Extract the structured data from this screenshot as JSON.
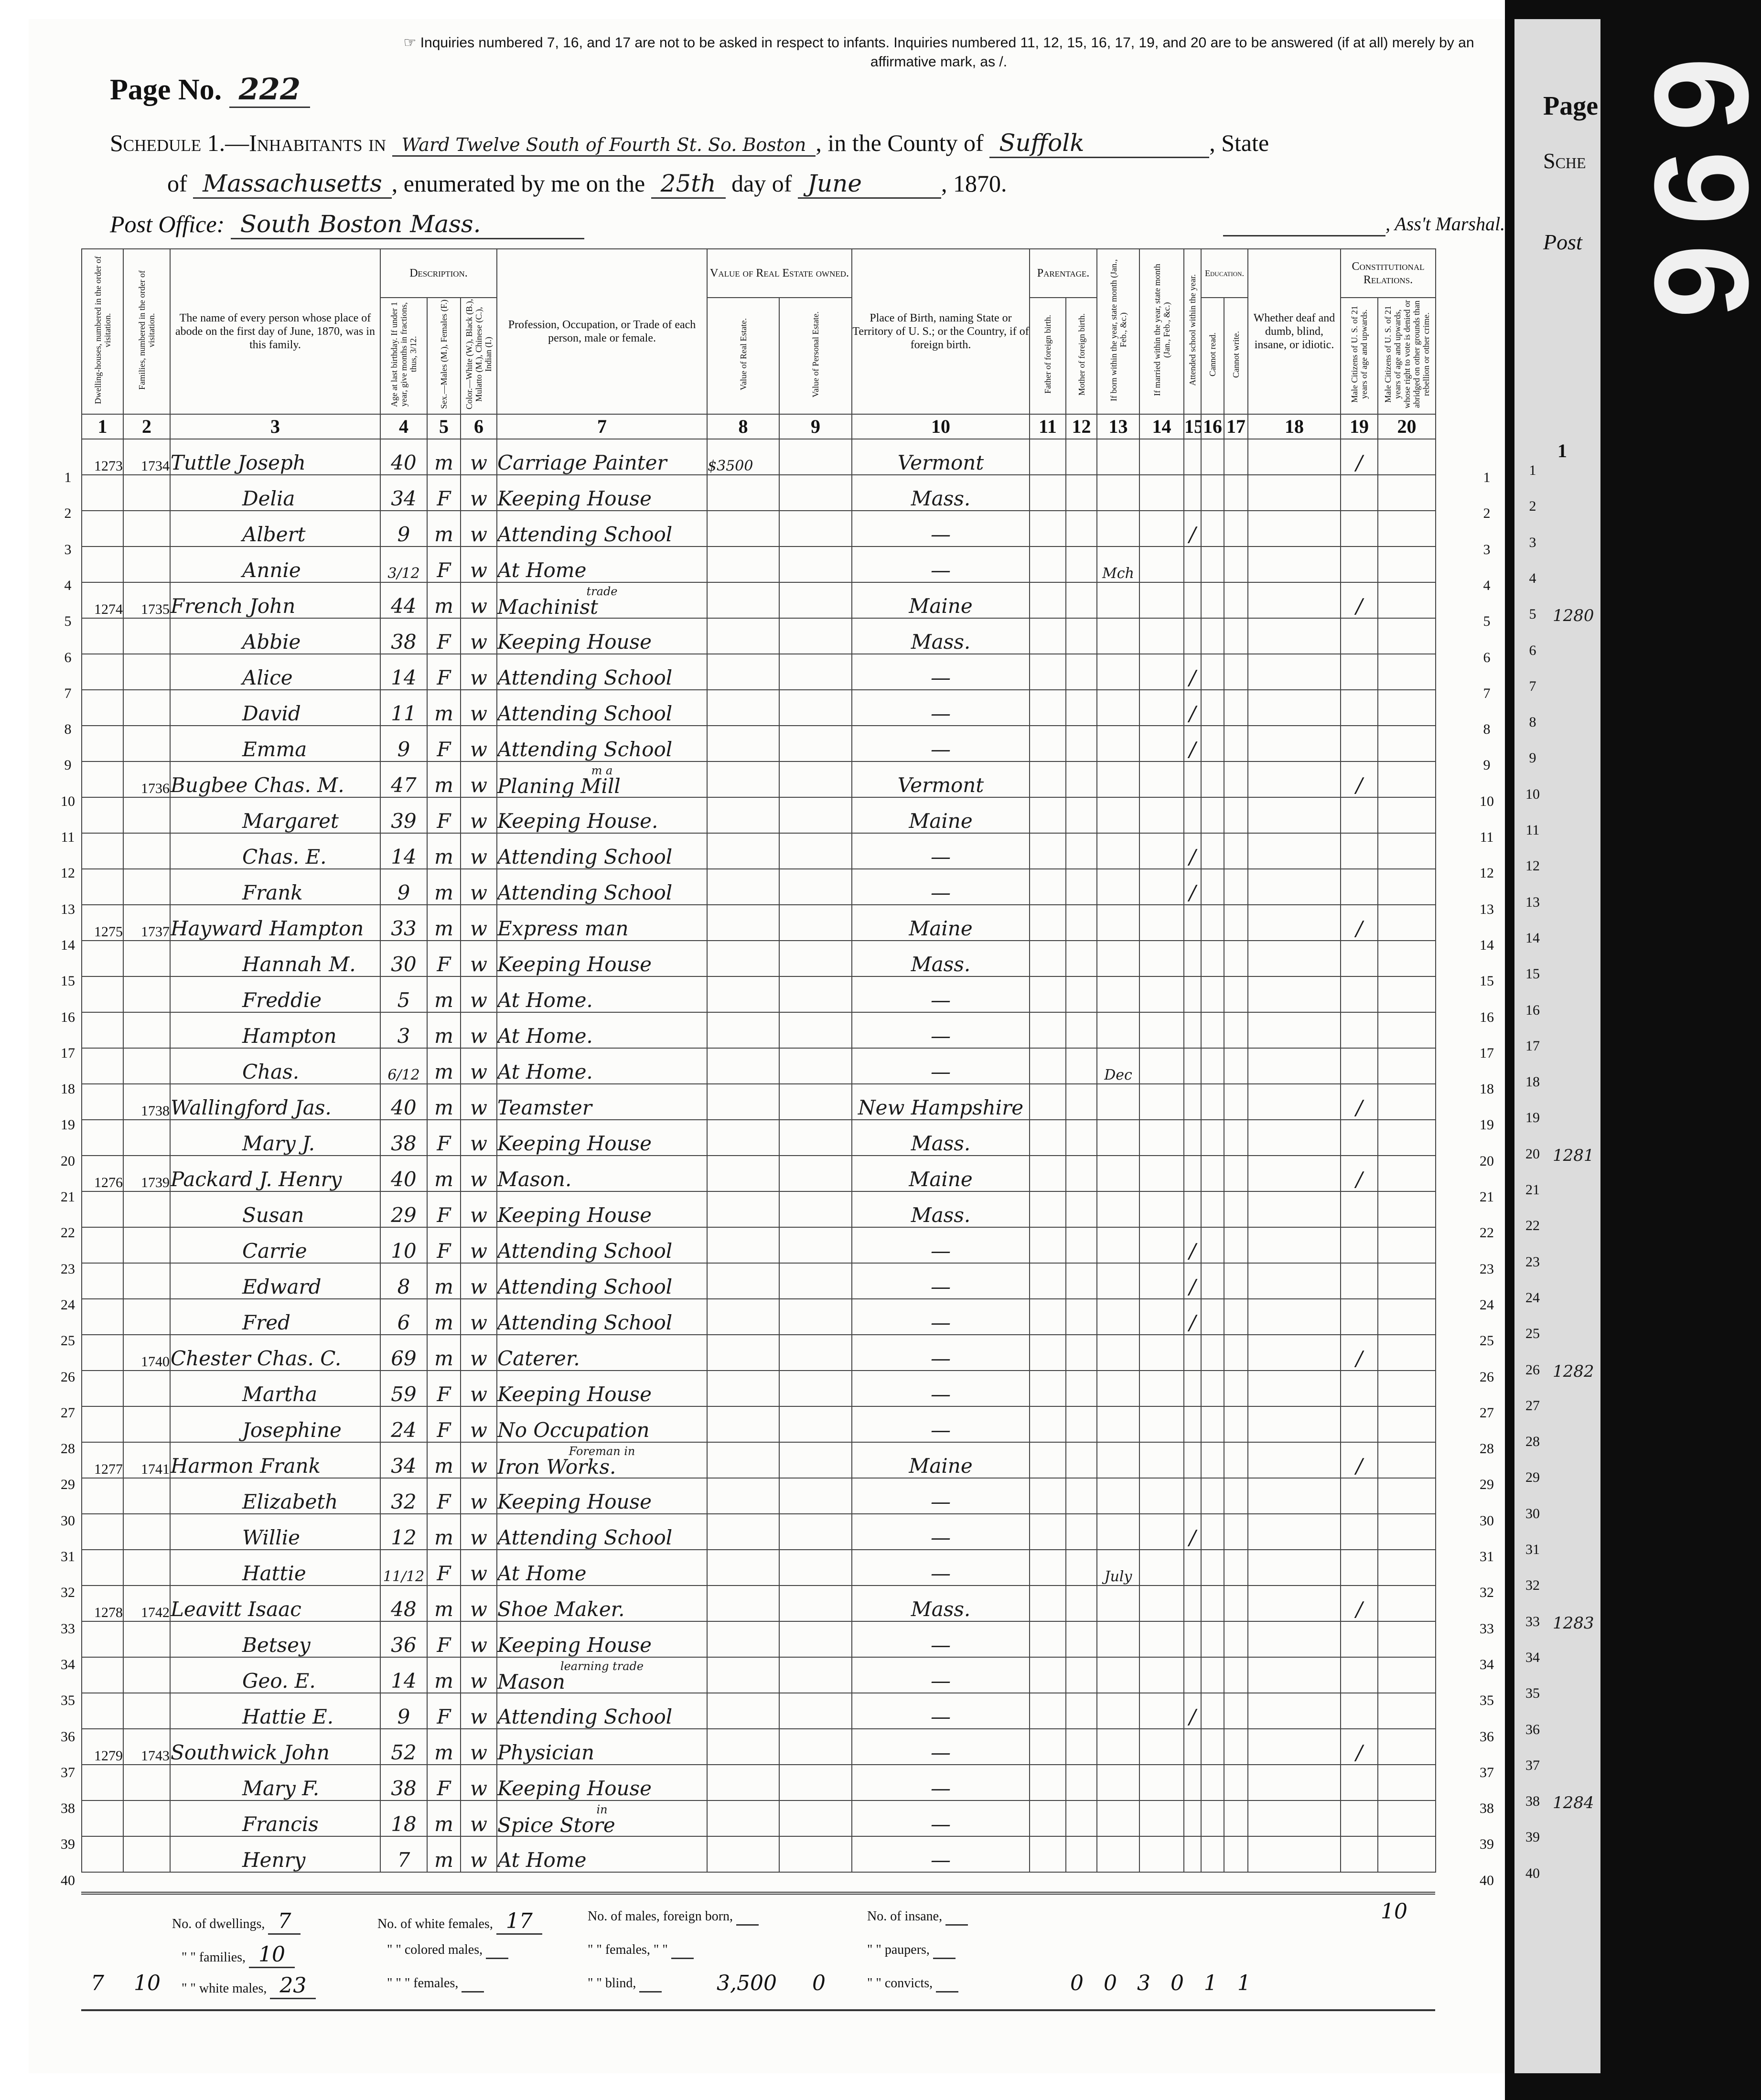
{
  "header": {
    "page_label": "Page No.",
    "page_no": "222",
    "note": "☞ Inquiries numbered 7, 16, and 17 are not to be asked in respect to infants. Inquiries numbered 11, 12, 15, 16, 17, 19, and 20 are to be answered (if at all) merely by an affirmative mark, as /.",
    "schedule_label": "Schedule 1.—Inhabitants in",
    "ward": "Ward Twelve South of Fourth St. So. Boston",
    "county_label": ", in the County of",
    "county": "Suffolk",
    "state_label": ", State",
    "of_label": "of",
    "state": "Massachusetts",
    "enumerated_label": ", enumerated by me on the",
    "day": "25th",
    "day_of_label": "day of",
    "month": "June",
    "year": ", 1870.",
    "post_office_label": "Post Office:",
    "post_office": "South Boston Mass.",
    "marshal_label": ", Ass't Marshal."
  },
  "groups": {
    "description": "Description.",
    "value": "Value of Real Estate owned.",
    "parentage": "Parentage.",
    "education": "Education.",
    "constitutional": "Constitutional Relations."
  },
  "columns": [
    "Dwelling-houses, numbered in the order of visitation.",
    "Families, numbered in the order of visitation.",
    "The name of every person whose place of abode on the first day of June, 1870, was in this family.",
    "Age at last birthday. If under 1 year, give months in fractions, thus, 3/12.",
    "Sex.—Males (M.), Females (F.)",
    "Color.—White (W.), Black (B.), Mulatto (M.), Chinese (C.), Indian (I.)",
    "Profession, Occupation, or Trade of each person, male or female.",
    "Value of Real Estate.",
    "Value of Personal Estate.",
    "Place of Birth, naming State or Territory of U. S.; or the Country, if of foreign birth.",
    "Father of foreign birth.",
    "Mother of foreign birth.",
    "If born within the year, state month (Jan., Feb., &c.)",
    "If married within the year, state month (Jan., Feb., &c.)",
    "Attended school within the year.",
    "Cannot read.",
    "Cannot write.",
    "Whether deaf and dumb, blind, insane, or idiotic.",
    "Male Citizens of U. S. of 21 years of age and upwards.",
    "Male Citizens of U. S. of 21 years of age and upwards, whose right to vote is denied or abridged on other grounds than rebellion or other crime."
  ],
  "column_numbers": [
    "1",
    "2",
    "3",
    "4",
    "5",
    "6",
    "7",
    "8",
    "9",
    "10",
    "11",
    "12",
    "13",
    "14",
    "15",
    "16",
    "17",
    "18",
    "19",
    "20"
  ],
  "rows": [
    {
      "line": "1",
      "dwelling": "1273",
      "family": "1734",
      "name": "Tuttle Joseph",
      "age": "40",
      "sex": "m",
      "color": "w",
      "occupation": "Carriage Painter",
      "real_estate": "$3500",
      "birthplace": "Vermont",
      "citizen": "/"
    },
    {
      "line": "2",
      "name": "Delia",
      "age": "34",
      "sex": "F",
      "color": "w",
      "occupation": "Keeping House",
      "birthplace": "Mass."
    },
    {
      "line": "3",
      "name": "Albert",
      "age": "9",
      "sex": "m",
      "color": "w",
      "occupation": "Attending School",
      "birthplace": "—",
      "school": "/"
    },
    {
      "line": "4",
      "name": "Annie",
      "age": "3/12",
      "sex": "F",
      "color": "w",
      "occupation": "At Home",
      "birthplace": "—",
      "born_month": "Mch"
    },
    {
      "line": "5",
      "dwelling": "1274",
      "family": "1735",
      "name": "French John",
      "age": "44",
      "sex": "m",
      "color": "w",
      "occupation": "Machinist",
      "occupation_note": "trade",
      "birthplace": "Maine",
      "citizen": "/"
    },
    {
      "line": "6",
      "name": "Abbie",
      "age": "38",
      "sex": "F",
      "color": "w",
      "occupation": "Keeping House",
      "birthplace": "Mass."
    },
    {
      "line": "7",
      "name": "Alice",
      "age": "14",
      "sex": "F",
      "color": "w",
      "occupation": "Attending School",
      "birthplace": "—",
      "school": "/"
    },
    {
      "line": "8",
      "name": "David",
      "age": "11",
      "sex": "m",
      "color": "w",
      "occupation": "Attending School",
      "birthplace": "—",
      "school": "/"
    },
    {
      "line": "9",
      "name": "Emma",
      "age": "9",
      "sex": "F",
      "color": "w",
      "occupation": "Attending School",
      "birthplace": "—",
      "school": "/"
    },
    {
      "line": "10",
      "family": "1736",
      "name": "Bugbee Chas. M.",
      "age": "47",
      "sex": "m",
      "color": "w",
      "occupation": "Planing Mill",
      "occupation_note": "m a",
      "birthplace": "Vermont",
      "citizen": "/"
    },
    {
      "line": "11",
      "name": "Margaret",
      "age": "39",
      "sex": "F",
      "color": "w",
      "occupation": "Keeping House.",
      "birthplace": "Maine"
    },
    {
      "line": "12",
      "name": "Chas. E.",
      "age": "14",
      "sex": "m",
      "color": "w",
      "occupation": "Attending School",
      "birthplace": "—",
      "school": "/"
    },
    {
      "line": "13",
      "name": "Frank",
      "age": "9",
      "sex": "m",
      "color": "w",
      "occupation": "Attending School",
      "birthplace": "—",
      "school": "/"
    },
    {
      "line": "14",
      "dwelling": "1275",
      "family": "1737",
      "name": "Hayward Hampton",
      "age": "33",
      "sex": "m",
      "color": "w",
      "occupation": "Express man",
      "birthplace": "Maine",
      "citizen": "/"
    },
    {
      "line": "15",
      "name": "Hannah M.",
      "age": "30",
      "sex": "F",
      "color": "w",
      "occupation": "Keeping House",
      "birthplace": "Mass."
    },
    {
      "line": "16",
      "name": "Freddie",
      "age": "5",
      "sex": "m",
      "color": "w",
      "occupation": "At Home.",
      "birthplace": "—"
    },
    {
      "line": "17",
      "name": "Hampton",
      "age": "3",
      "sex": "m",
      "color": "w",
      "occupation": "At Home.",
      "birthplace": "—"
    },
    {
      "line": "18",
      "name": "Chas.",
      "age": "6/12",
      "sex": "m",
      "color": "w",
      "occupation": "At Home.",
      "birthplace": "—",
      "born_month": "Dec"
    },
    {
      "line": "19",
      "family": "1738",
      "name": "Wallingford Jas.",
      "age": "40",
      "sex": "m",
      "color": "w",
      "occupation": "Teamster",
      "birthplace": "New Hampshire",
      "citizen": "/"
    },
    {
      "line": "20",
      "name": "Mary J.",
      "age": "38",
      "sex": "F",
      "color": "w",
      "occupation": "Keeping House",
      "birthplace": "Mass."
    },
    {
      "line": "21",
      "dwelling": "1276",
      "family": "1739",
      "name": "Packard J. Henry",
      "age": "40",
      "sex": "m",
      "color": "w",
      "occupation": "Mason.",
      "birthplace": "Maine",
      "citizen": "/"
    },
    {
      "line": "22",
      "name": "Susan",
      "age": "29",
      "sex": "F",
      "color": "w",
      "occupation": "Keeping House",
      "birthplace": "Mass."
    },
    {
      "line": "23",
      "name": "Carrie",
      "age": "10",
      "sex": "F",
      "color": "w",
      "occupation": "Attending School",
      "birthplace": "—",
      "school": "/"
    },
    {
      "line": "24",
      "name": "Edward",
      "age": "8",
      "sex": "m",
      "color": "w",
      "occupation": "Attending School",
      "birthplace": "—",
      "school": "/"
    },
    {
      "line": "25",
      "name": "Fred",
      "age": "6",
      "sex": "m",
      "color": "w",
      "occupation": "Attending School",
      "birthplace": "—",
      "school": "/"
    },
    {
      "line": "26",
      "family": "1740",
      "name": "Chester Chas. C.",
      "age": "69",
      "sex": "m",
      "color": "w",
      "occupation": "Caterer.",
      "birthplace": "—",
      "citizen": "/"
    },
    {
      "line": "27",
      "name": "Martha",
      "age": "59",
      "sex": "F",
      "color": "w",
      "occupation": "Keeping House",
      "birthplace": "—"
    },
    {
      "line": "28",
      "name": "Josephine",
      "age": "24",
      "sex": "F",
      "color": "w",
      "occupation": "No Occupation",
      "birthplace": "—"
    },
    {
      "line": "29",
      "dwelling": "1277",
      "family": "1741",
      "name": "Harmon Frank",
      "age": "34",
      "sex": "m",
      "color": "w",
      "occupation": "Iron Works.",
      "occupation_note": "Foreman in",
      "birthplace": "Maine",
      "citizen": "/"
    },
    {
      "line": "30",
      "name": "Elizabeth",
      "age": "32",
      "sex": "F",
      "color": "w",
      "occupation": "Keeping House",
      "birthplace": "—"
    },
    {
      "line": "31",
      "name": "Willie",
      "age": "12",
      "sex": "m",
      "color": "w",
      "occupation": "Attending School",
      "birthplace": "—",
      "school": "/"
    },
    {
      "line": "32",
      "name": "Hattie",
      "age": "11/12",
      "sex": "F",
      "color": "w",
      "occupation": "At Home",
      "birthplace": "—",
      "born_month": "July"
    },
    {
      "line": "33",
      "dwelling": "1278",
      "family": "1742",
      "name": "Leavitt Isaac",
      "age": "48",
      "sex": "m",
      "color": "w",
      "occupation": "Shoe Maker.",
      "birthplace": "Mass.",
      "citizen": "/"
    },
    {
      "line": "34",
      "name": "Betsey",
      "age": "36",
      "sex": "F",
      "color": "w",
      "occupation": "Keeping House",
      "birthplace": "—"
    },
    {
      "line": "35",
      "name": "Geo. E.",
      "age": "14",
      "sex": "m",
      "color": "w",
      "occupation": "Mason",
      "occupation_note": "learning trade",
      "birthplace": "—"
    },
    {
      "line": "36",
      "name": "Hattie E.",
      "age": "9",
      "sex": "F",
      "color": "w",
      "occupation": "Attending School",
      "birthplace": "—",
      "school": "/"
    },
    {
      "line": "37",
      "dwelling": "1279",
      "family": "1743",
      "name": "Southwick John",
      "age": "52",
      "sex": "m",
      "color": "w",
      "occupation": "Physician",
      "birthplace": "—",
      "citizen": "/"
    },
    {
      "line": "38",
      "name": "Mary F.",
      "age": "38",
      "sex": "F",
      "color": "w",
      "occupation": "Keeping House",
      "birthplace": "—"
    },
    {
      "line": "39",
      "name": "Francis",
      "age": "18",
      "sex": "m",
      "color": "w",
      "occupation": "Spice Store",
      "occupation_note": "in",
      "birthplace": "—"
    },
    {
      "line": "40",
      "name": "Henry",
      "age": "7",
      "sex": "m",
      "color": "w",
      "occupation": "At Home",
      "birthplace": "—"
    }
  ],
  "footer": {
    "dwellings_label": "No. of dwellings,",
    "dwellings": "7",
    "white_females_label": "No. of white females,",
    "white_females": "17",
    "foreign_males_label": "No. of males, foreign born,",
    "families_label": "\" \" families,",
    "families": "10",
    "colored_males_label": "\" \" colored males,",
    "foreign_females_label": "\" \" females, \" \"",
    "white_males_label": "\" \" white males,",
    "white_males": "23",
    "colored_females_label": "\" \" \" females,",
    "blind_label": "\" \" blind,",
    "insane_label": "No. of insane,",
    "paupers_label": "\" \" paupers,",
    "convicts_label": "\" \" convicts,",
    "total_dwellings": "7",
    "total_families": "10",
    "total_real_estate": "3,500",
    "total_personal_estate": "0",
    "totals_11_15": "0 0 3 0 1 1",
    "total_citizens": "10"
  },
  "next_page": {
    "page_label": "Page",
    "schedule_label": "Sche",
    "post_label": "Post",
    "col_label": "1",
    "dwellings": {
      "5": "1280",
      "20": "1281",
      "26": "1282",
      "33": "1283",
      "38": "1284"
    }
  },
  "film_frame": "696"
}
